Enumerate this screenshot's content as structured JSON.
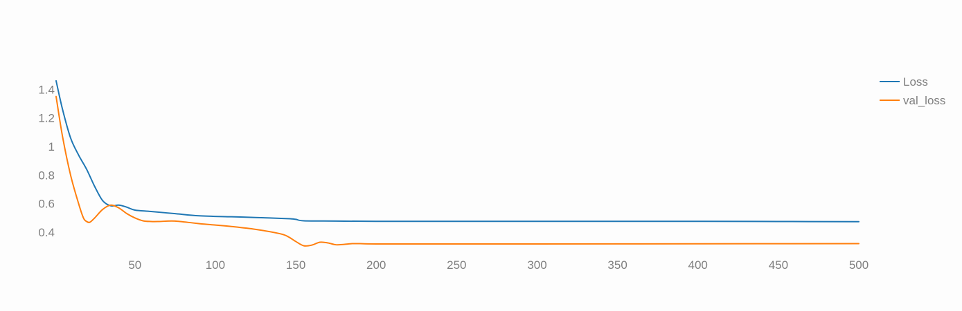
{
  "chart_data": {
    "type": "line",
    "title": "",
    "xlabel": "",
    "ylabel": "",
    "xlim": [
      1,
      500
    ],
    "ylim": [
      0.3,
      1.48
    ],
    "x_ticks": [
      50,
      100,
      150,
      200,
      250,
      300,
      350,
      400,
      450,
      500
    ],
    "x_tick_labels": [
      "50",
      "100",
      "150",
      "200",
      "250",
      "300",
      "350",
      "400",
      "450",
      "500"
    ],
    "y_ticks": [
      0.4,
      0.6,
      0.8,
      1.0,
      1.2,
      1.4
    ],
    "y_tick_labels": [
      "0.4",
      "0.6",
      "0.8",
      "1",
      "1.2",
      "1.4"
    ],
    "grid": false,
    "legend_position": "top-right",
    "series": [
      {
        "name": "Loss",
        "color": "#1f77b4",
        "x": [
          1,
          5,
          10,
          15,
          20,
          25,
          30,
          35,
          40,
          45,
          50,
          60,
          75,
          90,
          110,
          125,
          145,
          150,
          155,
          175,
          200,
          250,
          300,
          400,
          450,
          500
        ],
        "y": [
          1.46,
          1.26,
          1.06,
          0.94,
          0.84,
          0.72,
          0.62,
          0.585,
          0.59,
          0.575,
          0.555,
          0.545,
          0.53,
          0.515,
          0.508,
          0.503,
          0.495,
          0.49,
          0.48,
          0.478,
          0.476,
          0.476,
          0.476,
          0.476,
          0.475,
          0.474
        ]
      },
      {
        "name": "val_loss",
        "color": "#ff7f0e",
        "x": [
          1,
          5,
          10,
          15,
          18,
          20,
          22,
          25,
          30,
          35,
          40,
          45,
          50,
          55,
          60,
          65,
          75,
          90,
          100,
          110,
          125,
          140,
          145,
          150,
          155,
          160,
          165,
          170,
          175,
          180,
          185,
          190,
          200,
          250,
          300,
          400,
          500
        ],
        "y": [
          1.35,
          1.07,
          0.8,
          0.6,
          0.5,
          0.475,
          0.47,
          0.5,
          0.56,
          0.59,
          0.57,
          0.53,
          0.5,
          0.48,
          0.475,
          0.475,
          0.478,
          0.46,
          0.45,
          0.44,
          0.42,
          0.39,
          0.37,
          0.335,
          0.305,
          0.31,
          0.33,
          0.325,
          0.312,
          0.315,
          0.32,
          0.32,
          0.318,
          0.318,
          0.318,
          0.319,
          0.32
        ]
      }
    ]
  }
}
